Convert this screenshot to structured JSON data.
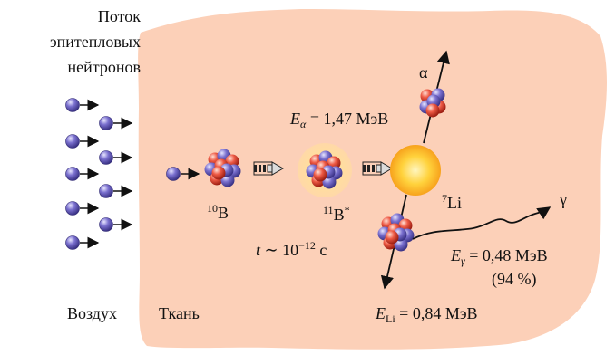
{
  "labels": {
    "flux_line1": "Поток",
    "flux_line2": "эпитепловых",
    "flux_line3": "нейтронов",
    "air": "Воздух",
    "tissue": "Ткань",
    "b10": {
      "sup": "10",
      "base": "B"
    },
    "b11": {
      "sup": "11",
      "base": "B",
      "star": "*"
    },
    "li7": {
      "sup": "7",
      "base": "Li"
    },
    "alpha": "α",
    "gamma": "γ",
    "time": {
      "var": "t",
      "rel": " ∼ 10",
      "exp": "−12",
      "unit": " с"
    },
    "e_alpha": {
      "var": "E",
      "sub": "α",
      "value": " = 1,47 МэВ"
    },
    "e_gamma": {
      "var": "E",
      "sub": "γ",
      "value": " = 0,48 МэВ"
    },
    "gamma_pct": "(94 %)",
    "e_li": {
      "var": "E",
      "sub": "Li",
      "value": " = 0,84 МэВ"
    }
  },
  "colors": {
    "tissue": "#fcd0b8",
    "neutron": "#6e64c0",
    "proton": "#e04a38",
    "glow": "#ffd23c",
    "arrow": "#111111"
  }
}
